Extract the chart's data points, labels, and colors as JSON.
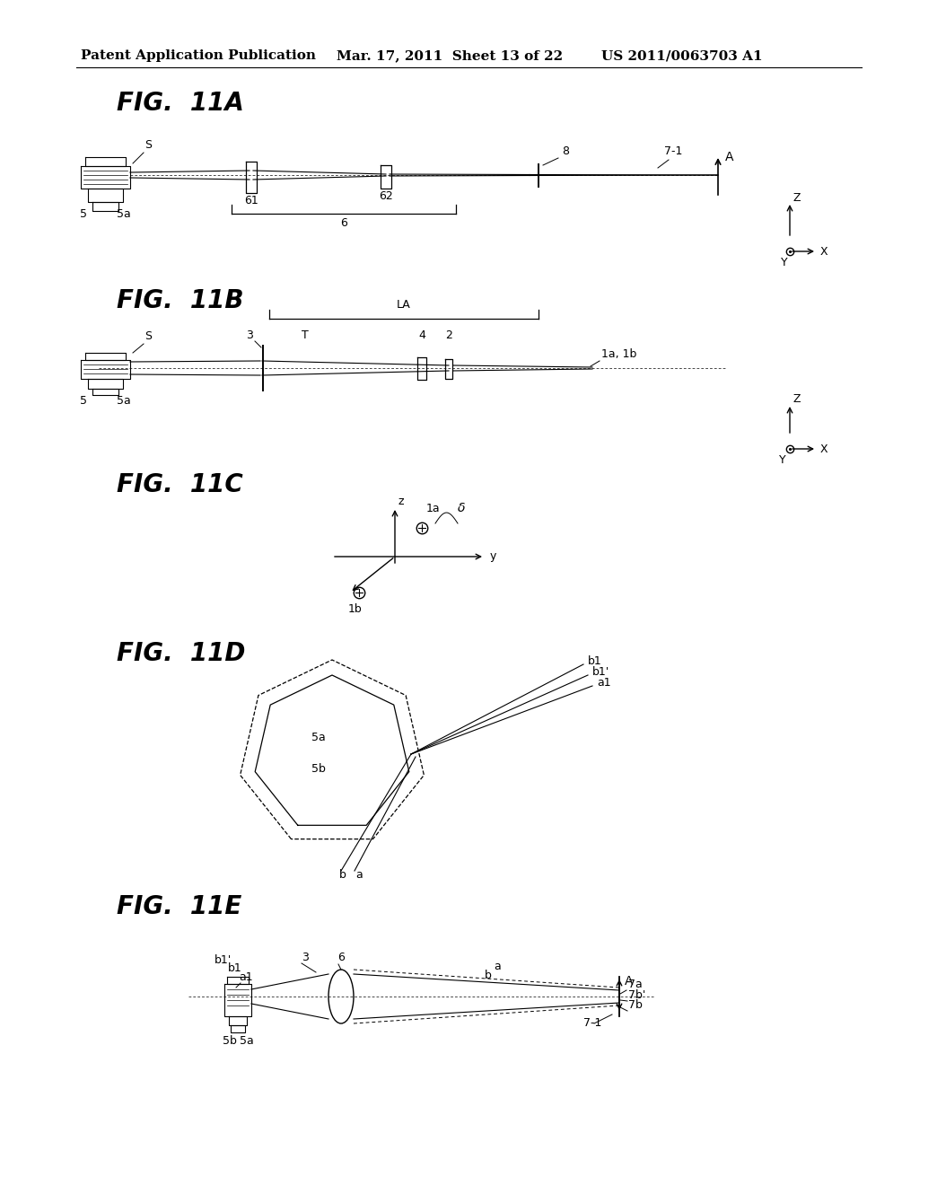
{
  "bg_color": "#ffffff",
  "text_color": "#000000",
  "header_left": "Patent Application Publication",
  "header_mid": "Mar. 17, 2011  Sheet 13 of 22",
  "header_right": "US 2011/0063703 A1",
  "fig_labels": [
    "FIG.  11A",
    "FIG.  11B",
    "FIG.  11C",
    "FIG.  11D",
    "FIG.  11E"
  ],
  "fig_label_fontsize": 20,
  "header_fontsize": 11
}
